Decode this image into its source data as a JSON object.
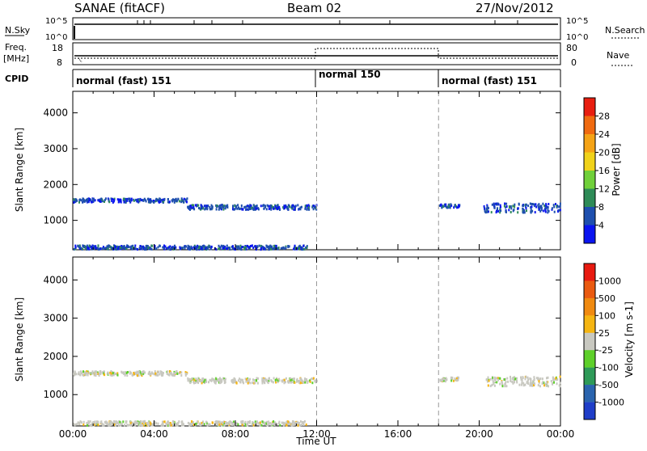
{
  "header": {
    "station": "SANAE (fitACF)",
    "beam": "Beam 02",
    "date": "27/Nov/2012"
  },
  "top_panels": {
    "nsky_label": "N.Sky",
    "nsearch_label": "N.Search",
    "freq_label_1": "Freq.",
    "freq_label_2": "[MHz]",
    "nave_label": "Nave",
    "cpid_label": "CPID",
    "nsky_ticks": [
      "10^5",
      "10^0"
    ],
    "nsearch_ticks": [
      "10^5",
      "10^0"
    ],
    "freq_ticks": [
      "18",
      "8"
    ],
    "nave_ticks": [
      "80",
      "0"
    ]
  },
  "cpid_segments": [
    {
      "label": "normal (fast) 151",
      "start_hour": 0,
      "end_hour": 12
    },
    {
      "label": "normal 150",
      "start_hour": 12,
      "end_hour": 18
    },
    {
      "label": "normal (fast) 151",
      "start_hour": 18,
      "end_hour": 24
    }
  ],
  "chart_data": [
    {
      "type": "heatmap",
      "title": "Power",
      "xlabel": "",
      "ylabel": "Slant Range [km]",
      "x_ticks": [
        "00:00",
        "04:00",
        "08:00",
        "12:00",
        "16:00",
        "20:00",
        "00:00"
      ],
      "xlim_hours": [
        0,
        24
      ],
      "ylim": [
        180,
        4600
      ],
      "y_ticks": [
        1000,
        2000,
        3000,
        4000
      ],
      "colorbar": {
        "label": "Power [dB]",
        "ticks": [
          "4",
          "8",
          "12",
          "16",
          "20",
          "24",
          "28"
        ],
        "colors": [
          "#0a14f0",
          "#1e4fae",
          "#2e8b57",
          "#70d03a",
          "#f0d21a",
          "#f5a316",
          "#f06a10",
          "#e81e10"
        ]
      },
      "echo_bands": [
        {
          "t0": 0.0,
          "t1": 5.6,
          "r0": 1530,
          "r1": 1640,
          "color_index": 1
        },
        {
          "t0": 5.6,
          "t1": 12.0,
          "r0": 1330,
          "r1": 1460,
          "color_index": 1
        },
        {
          "t0": 18.0,
          "t1": 19.0,
          "r0": 1380,
          "r1": 1480,
          "color_index": 1
        },
        {
          "t0": 20.2,
          "t1": 24.0,
          "r0": 1250,
          "r1": 1500,
          "color_index": 1
        },
        {
          "t0": 0.0,
          "t1": 11.5,
          "r0": 220,
          "r1": 330,
          "color_index": 1
        }
      ]
    },
    {
      "type": "heatmap",
      "title": "Velocity",
      "xlabel": "Time UT",
      "ylabel": "Slant Range [km]",
      "x_ticks": [
        "00:00",
        "04:00",
        "08:00",
        "12:00",
        "16:00",
        "20:00",
        "00:00"
      ],
      "xlim_hours": [
        0,
        24
      ],
      "ylim": [
        180,
        4600
      ],
      "y_ticks": [
        1000,
        2000,
        3000,
        4000
      ],
      "colorbar": {
        "label": "Velocity [m s-1]",
        "ticks": [
          "1000",
          "500",
          "100",
          "25",
          "-25",
          "-100",
          "-500",
          "-1000"
        ],
        "colors": [
          "#1f3ec8",
          "#2a64ae",
          "#2e9a58",
          "#5ed02a",
          "#c8c8c0",
          "#f5b512",
          "#f08a10",
          "#ea5a10",
          "#e81a10"
        ]
      },
      "echo_bands": [
        {
          "t0": 0.0,
          "t1": 5.6,
          "r0": 1530,
          "r1": 1640,
          "color_index": 4
        },
        {
          "t0": 5.6,
          "t1": 12.0,
          "r0": 1330,
          "r1": 1460,
          "color_index": 4
        },
        {
          "t0": 18.0,
          "t1": 19.0,
          "r0": 1380,
          "r1": 1480,
          "color_index": 4
        },
        {
          "t0": 20.2,
          "t1": 24.0,
          "r0": 1250,
          "r1": 1500,
          "color_index": 4
        },
        {
          "t0": 0.0,
          "t1": 11.5,
          "r0": 220,
          "r1": 330,
          "color_index": 4
        }
      ]
    }
  ]
}
